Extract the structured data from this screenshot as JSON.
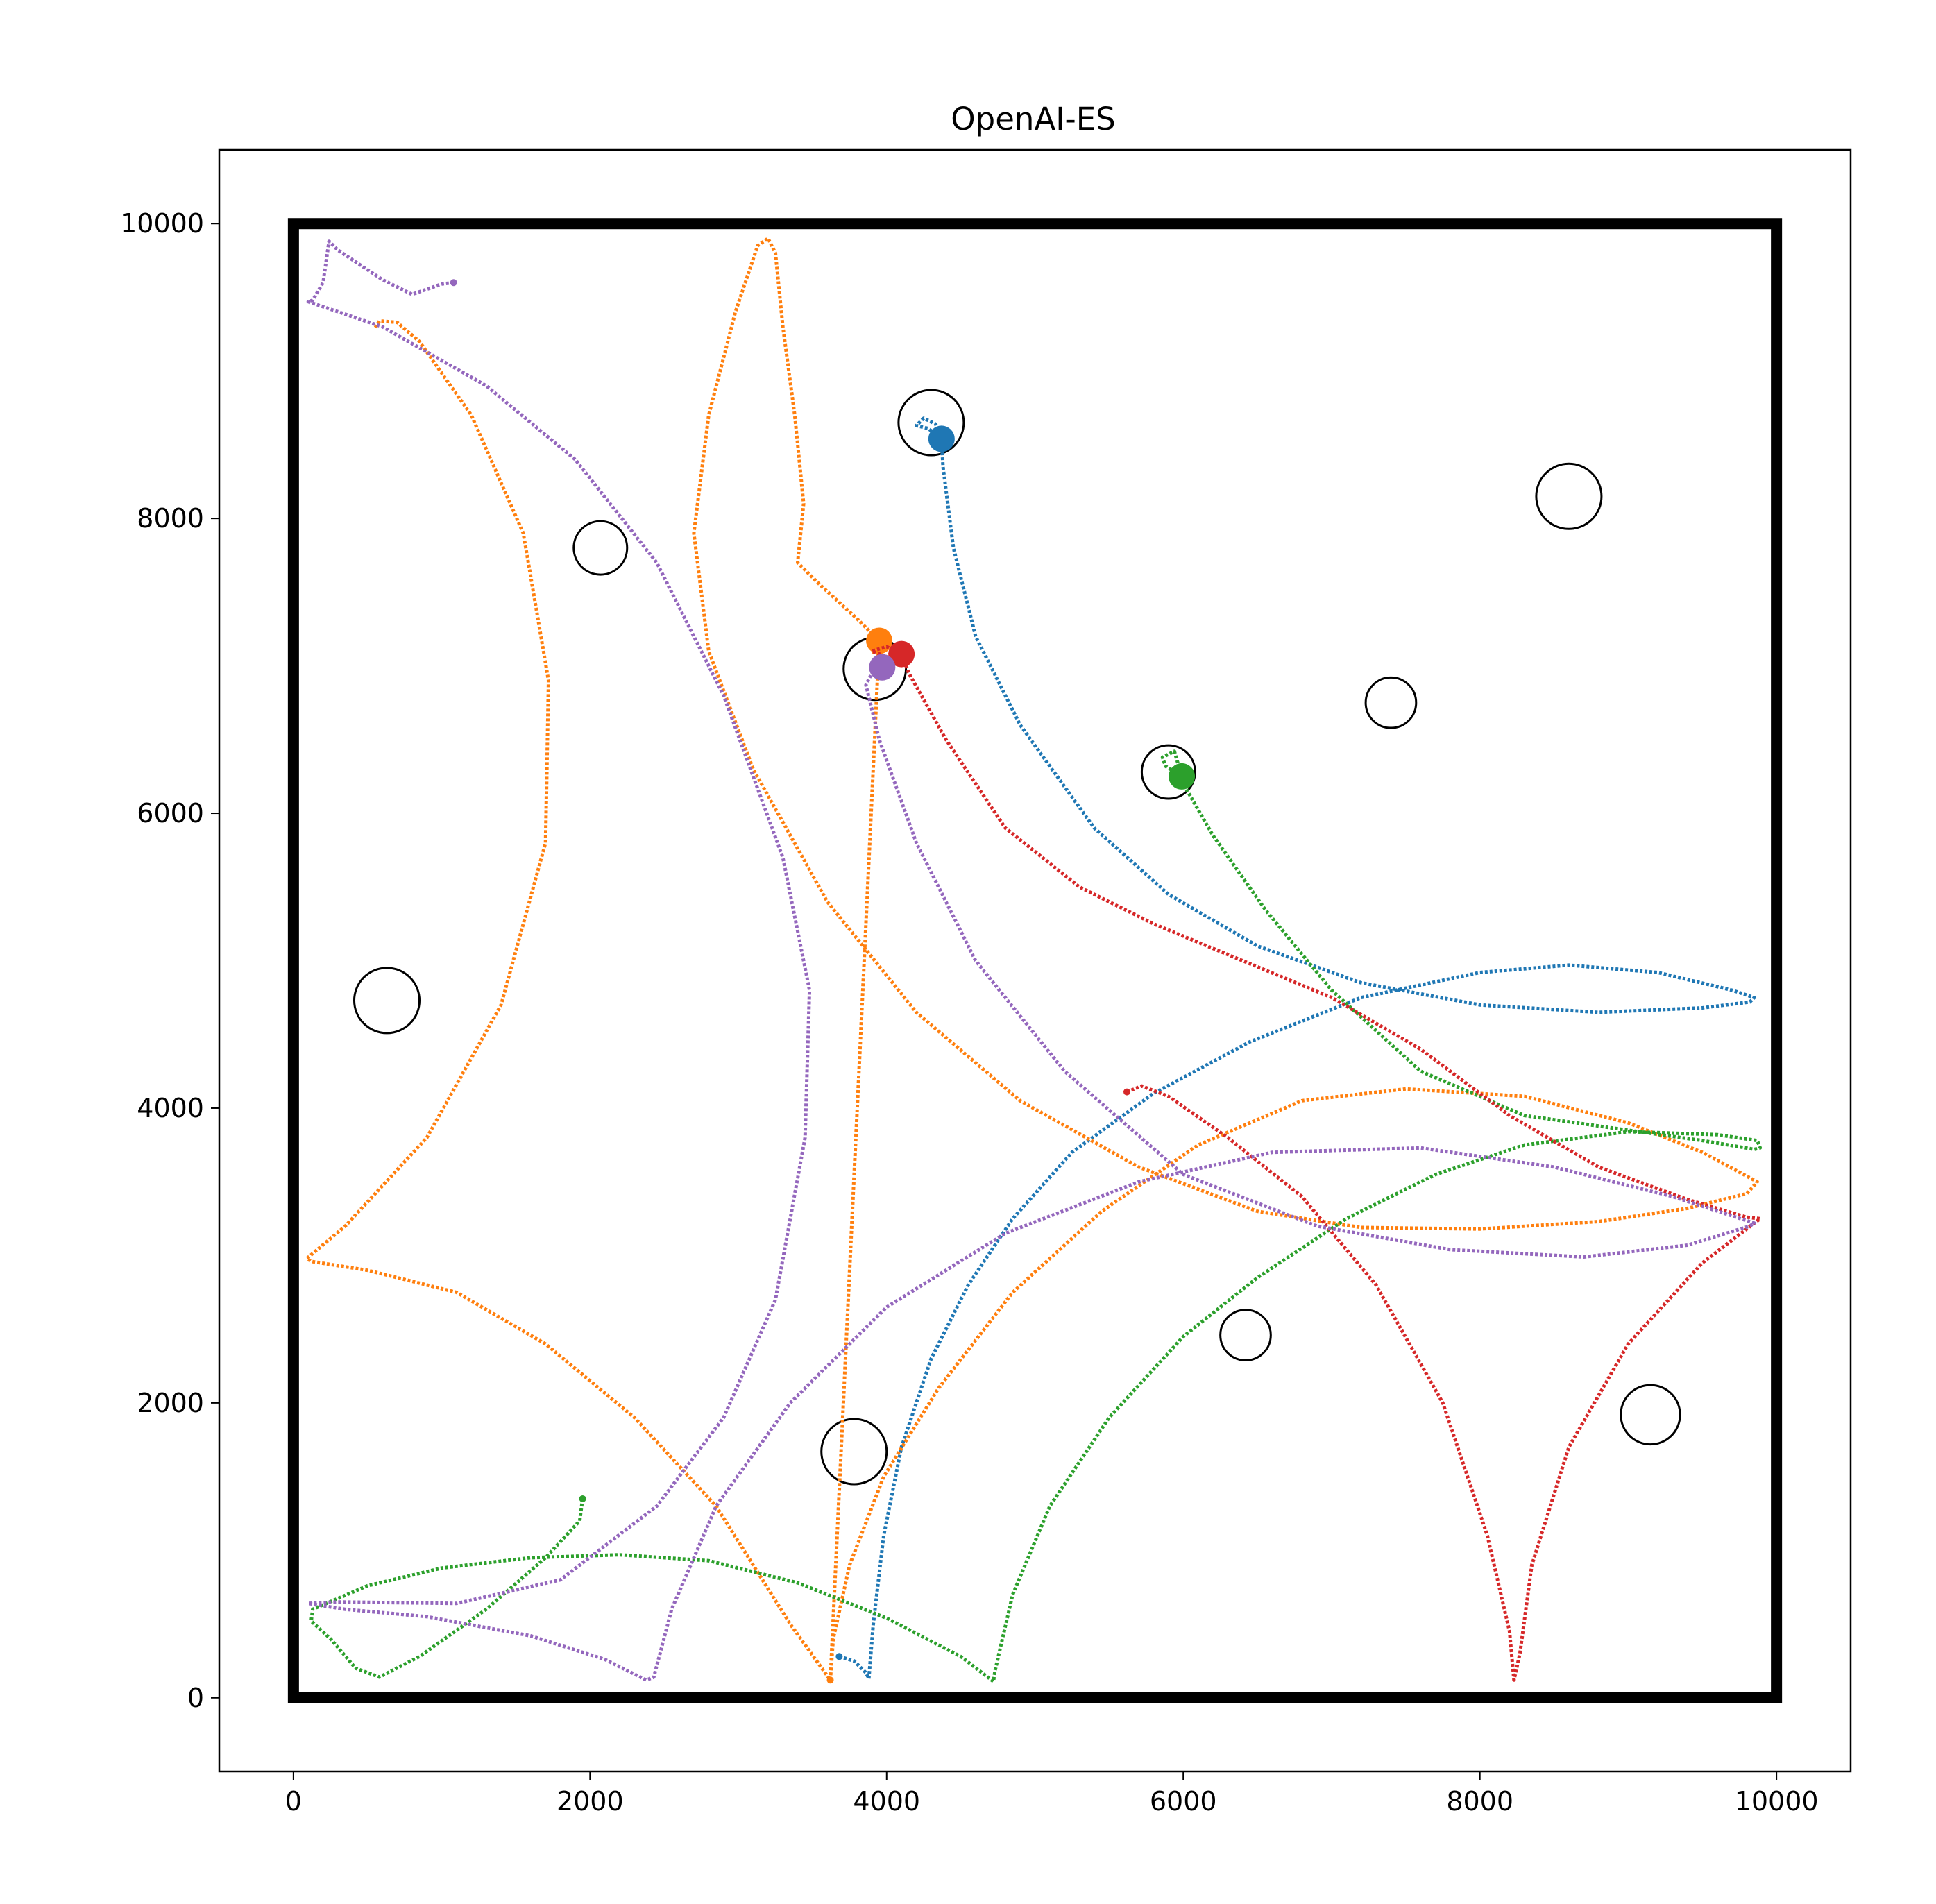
{
  "chart_data": {
    "type": "scatter",
    "title": "OpenAI-ES",
    "xlabel": "",
    "ylabel": "",
    "xlim": [
      -500,
      10500
    ],
    "ylim": [
      -500,
      10500
    ],
    "x_ticks": [
      0,
      2000,
      4000,
      6000,
      8000,
      10000
    ],
    "y_ticks": [
      0,
      2000,
      4000,
      6000,
      8000,
      10000
    ],
    "x_tick_labels": [
      "0",
      "2000",
      "4000",
      "6000",
      "8000",
      "10000"
    ],
    "y_tick_labels": [
      "0",
      "2000",
      "4000",
      "6000",
      "8000",
      "10000"
    ],
    "grid": false,
    "legend": "none",
    "arena": {
      "x0": 0,
      "y0": 0,
      "x1": 10000,
      "y1": 10000
    },
    "targets": [
      {
        "x": 4300,
        "y": 8650,
        "r": 220
      },
      {
        "x": 8600,
        "y": 8150,
        "r": 220
      },
      {
        "x": 2070,
        "y": 7800,
        "r": 180
      },
      {
        "x": 3920,
        "y": 6980,
        "r": 210
      },
      {
        "x": 7400,
        "y": 6750,
        "r": 170
      },
      {
        "x": 5900,
        "y": 6280,
        "r": 180
      },
      {
        "x": 630,
        "y": 4730,
        "r": 220
      },
      {
        "x": 6420,
        "y": 2460,
        "r": 170
      },
      {
        "x": 3780,
        "y": 1670,
        "r": 220
      },
      {
        "x": 9150,
        "y": 1920,
        "r": 200
      }
    ],
    "series": [
      {
        "color": "#1f77b4",
        "end": [
          4370,
          8540
        ],
        "points": [
          [
            3680,
            280
          ],
          [
            3780,
            250
          ],
          [
            3860,
            170
          ],
          [
            3880,
            130
          ],
          [
            3910,
            500
          ],
          [
            3980,
            1100
          ],
          [
            4100,
            1700
          ],
          [
            4300,
            2300
          ],
          [
            4550,
            2800
          ],
          [
            4850,
            3250
          ],
          [
            5250,
            3700
          ],
          [
            5800,
            4100
          ],
          [
            6450,
            4450
          ],
          [
            7200,
            4750
          ],
          [
            8000,
            4920
          ],
          [
            8600,
            4970
          ],
          [
            9200,
            4920
          ],
          [
            9700,
            4800
          ],
          [
            9850,
            4750
          ],
          [
            9820,
            4720
          ],
          [
            9500,
            4680
          ],
          [
            8800,
            4650
          ],
          [
            8000,
            4700
          ],
          [
            7200,
            4850
          ],
          [
            6500,
            5100
          ],
          [
            5900,
            5450
          ],
          [
            5400,
            5900
          ],
          [
            4900,
            6600
          ],
          [
            4600,
            7200
          ],
          [
            4450,
            7800
          ],
          [
            4380,
            8350
          ],
          [
            4370,
            8540
          ],
          [
            4280,
            8610
          ],
          [
            4200,
            8630
          ],
          [
            4250,
            8680
          ],
          [
            4330,
            8640
          ],
          [
            4370,
            8540
          ]
        ]
      },
      {
        "color": "#ff7f0e",
        "end": [
          3950,
          7170
        ],
        "points": [
          [
            3620,
            120
          ],
          [
            3640,
            400
          ],
          [
            3750,
            900
          ],
          [
            3980,
            1500
          ],
          [
            4350,
            2100
          ],
          [
            4850,
            2750
          ],
          [
            5450,
            3300
          ],
          [
            6100,
            3750
          ],
          [
            6800,
            4050
          ],
          [
            7500,
            4130
          ],
          [
            8300,
            4080
          ],
          [
            9000,
            3900
          ],
          [
            9500,
            3700
          ],
          [
            9870,
            3500
          ],
          [
            9800,
            3420
          ],
          [
            9400,
            3320
          ],
          [
            8800,
            3230
          ],
          [
            8000,
            3180
          ],
          [
            7200,
            3190
          ],
          [
            6500,
            3300
          ],
          [
            5700,
            3600
          ],
          [
            4900,
            4050
          ],
          [
            4200,
            4650
          ],
          [
            3600,
            5400
          ],
          [
            3100,
            6300
          ],
          [
            2800,
            7100
          ],
          [
            2700,
            7900
          ],
          [
            2800,
            8700
          ],
          [
            2980,
            9400
          ],
          [
            3130,
            9850
          ],
          [
            3200,
            9900
          ],
          [
            3250,
            9800
          ],
          [
            3300,
            9300
          ],
          [
            3380,
            8700
          ],
          [
            3440,
            8100
          ],
          [
            3400,
            7700
          ],
          [
            3550,
            7550
          ],
          [
            3800,
            7320
          ],
          [
            3950,
            7170
          ],
          [
            4050,
            7100
          ],
          [
            3980,
            7050
          ],
          [
            3900,
            7100
          ],
          [
            3950,
            7170
          ],
          [
            3620,
            120
          ],
          [
            3350,
            500
          ],
          [
            2850,
            1300
          ],
          [
            2300,
            1900
          ],
          [
            1700,
            2400
          ],
          [
            1100,
            2750
          ],
          [
            500,
            2900
          ],
          [
            120,
            2960
          ],
          [
            90,
            2980
          ],
          [
            350,
            3200
          ],
          [
            900,
            3800
          ],
          [
            1400,
            4700
          ],
          [
            1700,
            5800
          ],
          [
            1720,
            6900
          ],
          [
            1550,
            7900
          ],
          [
            1200,
            8700
          ],
          [
            850,
            9200
          ],
          [
            700,
            9330
          ],
          [
            580,
            9340
          ],
          [
            550,
            9290
          ]
        ]
      },
      {
        "color": "#2ca02c",
        "end": [
          5990,
          6250
        ],
        "points": [
          [
            1950,
            1350
          ],
          [
            1930,
            1200
          ],
          [
            1700,
            950
          ],
          [
            1300,
            600
          ],
          [
            850,
            280
          ],
          [
            580,
            140
          ],
          [
            420,
            200
          ],
          [
            250,
            400
          ],
          [
            120,
            520
          ],
          [
            130,
            600
          ],
          [
            500,
            760
          ],
          [
            1000,
            880
          ],
          [
            1600,
            950
          ],
          [
            2200,
            970
          ],
          [
            2800,
            930
          ],
          [
            3400,
            780
          ],
          [
            4000,
            540
          ],
          [
            4500,
            280
          ],
          [
            4720,
            110
          ],
          [
            4730,
            180
          ],
          [
            4850,
            700
          ],
          [
            5100,
            1300
          ],
          [
            5500,
            1900
          ],
          [
            6000,
            2450
          ],
          [
            6500,
            2850
          ],
          [
            7100,
            3250
          ],
          [
            7700,
            3550
          ],
          [
            8300,
            3750
          ],
          [
            9000,
            3840
          ],
          [
            9600,
            3820
          ],
          [
            9870,
            3780
          ],
          [
            9890,
            3730
          ],
          [
            9850,
            3720
          ],
          [
            9500,
            3780
          ],
          [
            9000,
            3850
          ],
          [
            8300,
            3950
          ],
          [
            7600,
            4250
          ],
          [
            7000,
            4800
          ],
          [
            6550,
            5350
          ],
          [
            6200,
            5850
          ],
          [
            6000,
            6200
          ],
          [
            5990,
            6250
          ],
          [
            5880,
            6320
          ],
          [
            5860,
            6380
          ],
          [
            5940,
            6420
          ],
          [
            5990,
            6250
          ]
        ]
      },
      {
        "color": "#d62728",
        "end": [
          4100,
          7080
        ],
        "points": [
          [
            5620,
            4110
          ],
          [
            5720,
            4150
          ],
          [
            5900,
            4080
          ],
          [
            6300,
            3800
          ],
          [
            6800,
            3400
          ],
          [
            7300,
            2800
          ],
          [
            7750,
            2000
          ],
          [
            8050,
            1100
          ],
          [
            8200,
            450
          ],
          [
            8230,
            120
          ],
          [
            8270,
            300
          ],
          [
            8350,
            900
          ],
          [
            8600,
            1700
          ],
          [
            9000,
            2400
          ],
          [
            9500,
            2950
          ],
          [
            9890,
            3250
          ],
          [
            9800,
            3260
          ],
          [
            9400,
            3380
          ],
          [
            8800,
            3600
          ],
          [
            8200,
            3950
          ],
          [
            7600,
            4400
          ],
          [
            7000,
            4750
          ],
          [
            6400,
            5000
          ],
          [
            5800,
            5250
          ],
          [
            5300,
            5500
          ],
          [
            4800,
            5900
          ],
          [
            4400,
            6500
          ],
          [
            4150,
            6950
          ],
          [
            4100,
            7080
          ],
          [
            4000,
            7130
          ],
          [
            3900,
            7100
          ],
          [
            4030,
            7050
          ],
          [
            4100,
            7080
          ]
        ]
      },
      {
        "color": "#9467bd",
        "end": [
          3970,
          6990
        ],
        "points": [
          [
            1080,
            9600
          ],
          [
            1000,
            9590
          ],
          [
            800,
            9520
          ],
          [
            600,
            9620
          ],
          [
            300,
            9820
          ],
          [
            240,
            9880
          ],
          [
            200,
            9600
          ],
          [
            130,
            9480
          ],
          [
            100,
            9470
          ],
          [
            600,
            9300
          ],
          [
            1300,
            8900
          ],
          [
            1900,
            8400
          ],
          [
            2450,
            7700
          ],
          [
            2900,
            6800
          ],
          [
            3300,
            5700
          ],
          [
            3480,
            4800
          ],
          [
            3450,
            3800
          ],
          [
            3250,
            2700
          ],
          [
            2900,
            1900
          ],
          [
            2450,
            1300
          ],
          [
            1800,
            800
          ],
          [
            1100,
            640
          ],
          [
            300,
            650
          ],
          [
            100,
            640
          ],
          [
            350,
            600
          ],
          [
            900,
            550
          ],
          [
            1600,
            420
          ],
          [
            2100,
            260
          ],
          [
            2380,
            120
          ],
          [
            2430,
            140
          ],
          [
            2550,
            600
          ],
          [
            2850,
            1300
          ],
          [
            3350,
            2000
          ],
          [
            4000,
            2650
          ],
          [
            4800,
            3150
          ],
          [
            5700,
            3500
          ],
          [
            6600,
            3700
          ],
          [
            7600,
            3730
          ],
          [
            8500,
            3600
          ],
          [
            9300,
            3400
          ],
          [
            9850,
            3220
          ],
          [
            9820,
            3200
          ],
          [
            9400,
            3070
          ],
          [
            8700,
            2990
          ],
          [
            7800,
            3040
          ],
          [
            6900,
            3200
          ],
          [
            6000,
            3550
          ],
          [
            5200,
            4250
          ],
          [
            4600,
            5000
          ],
          [
            4200,
            5800
          ],
          [
            3950,
            6500
          ],
          [
            3860,
            6870
          ],
          [
            3900,
            6950
          ],
          [
            3970,
            6990
          ]
        ]
      }
    ]
  }
}
